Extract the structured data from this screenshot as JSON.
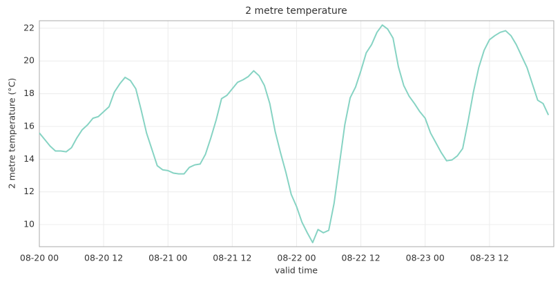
{
  "chart_data": {
    "type": "line",
    "title": "2 metre temperature",
    "x_label": "valid time",
    "y_label": "2 metre temperature (°C)",
    "x": [
      "08-20 00",
      "08-20 01",
      "08-20 02",
      "08-20 03",
      "08-20 04",
      "08-20 05",
      "08-20 06",
      "08-20 07",
      "08-20 08",
      "08-20 09",
      "08-20 10",
      "08-20 11",
      "08-20 12",
      "08-20 13",
      "08-20 14",
      "08-20 15",
      "08-20 16",
      "08-20 17",
      "08-20 18",
      "08-20 19",
      "08-20 20",
      "08-20 21",
      "08-20 22",
      "08-20 23",
      "08-21 00",
      "08-21 01",
      "08-21 02",
      "08-21 03",
      "08-21 04",
      "08-21 05",
      "08-21 06",
      "08-21 07",
      "08-21 08",
      "08-21 09",
      "08-21 10",
      "08-21 11",
      "08-21 12",
      "08-21 13",
      "08-21 14",
      "08-21 15",
      "08-21 16",
      "08-21 17",
      "08-21 18",
      "08-21 19",
      "08-21 20",
      "08-21 21",
      "08-21 22",
      "08-21 23",
      "08-22 00",
      "08-22 01",
      "08-22 02",
      "08-22 03",
      "08-22 04",
      "08-22 05",
      "08-22 06",
      "08-22 07",
      "08-22 08",
      "08-22 09",
      "08-22 10",
      "08-22 11",
      "08-22 12",
      "08-22 13",
      "08-22 14",
      "08-22 15",
      "08-22 16",
      "08-22 17",
      "08-22 18",
      "08-22 19",
      "08-22 20",
      "08-22 21",
      "08-22 22",
      "08-22 23",
      "08-23 00",
      "08-23 01",
      "08-23 02",
      "08-23 03",
      "08-23 04",
      "08-23 05",
      "08-23 06",
      "08-23 07",
      "08-23 08",
      "08-23 09",
      "08-23 10",
      "08-23 11",
      "08-23 12",
      "08-23 13",
      "08-23 14",
      "08-23 15",
      "08-23 16",
      "08-23 17",
      "08-23 18",
      "08-23 19",
      "08-23 20",
      "08-23 21",
      "08-23 22",
      "08-23 23"
    ],
    "series": [
      {
        "name": "2 metre temperature",
        "color": "#86d3c3",
        "values": [
          15.6,
          15.2,
          14.8,
          14.5,
          14.5,
          14.45,
          14.7,
          15.3,
          15.8,
          16.1,
          16.5,
          16.6,
          16.9,
          17.2,
          18.1,
          18.6,
          19.0,
          18.8,
          18.3,
          17.0,
          15.6,
          14.6,
          13.6,
          13.35,
          13.3,
          13.15,
          13.1,
          13.1,
          13.5,
          13.65,
          13.7,
          14.3,
          15.3,
          16.4,
          17.7,
          17.9,
          18.3,
          18.7,
          18.85,
          19.05,
          19.4,
          19.1,
          18.5,
          17.4,
          15.7,
          14.4,
          13.2,
          11.85,
          11.1,
          10.15,
          9.5,
          8.9,
          9.7,
          9.5,
          9.65,
          11.3,
          13.7,
          16.1,
          17.75,
          18.4,
          19.4,
          20.5,
          21.0,
          21.75,
          22.2,
          21.95,
          21.4,
          19.65,
          18.5,
          17.85,
          17.4,
          16.9,
          16.5,
          15.6,
          15.0,
          14.4,
          13.9,
          13.95,
          14.2,
          14.65,
          16.3,
          18.1,
          19.6,
          20.65,
          21.3,
          21.55,
          21.75,
          21.85,
          21.55,
          21.0,
          20.3,
          19.6,
          18.6,
          17.6,
          17.4,
          16.7
        ]
      }
    ],
    "xlim": [
      "08-20 00",
      "08-23 23"
    ],
    "xticks": [
      "08-20 00",
      "08-20 12",
      "08-21 00",
      "08-21 12",
      "08-22 00",
      "08-22 12",
      "08-23 00",
      "08-23 12"
    ],
    "ylim": [
      8.65,
      22.46
    ],
    "yticks": [
      10,
      12,
      14,
      16,
      18,
      20,
      22
    ],
    "grid": true
  }
}
